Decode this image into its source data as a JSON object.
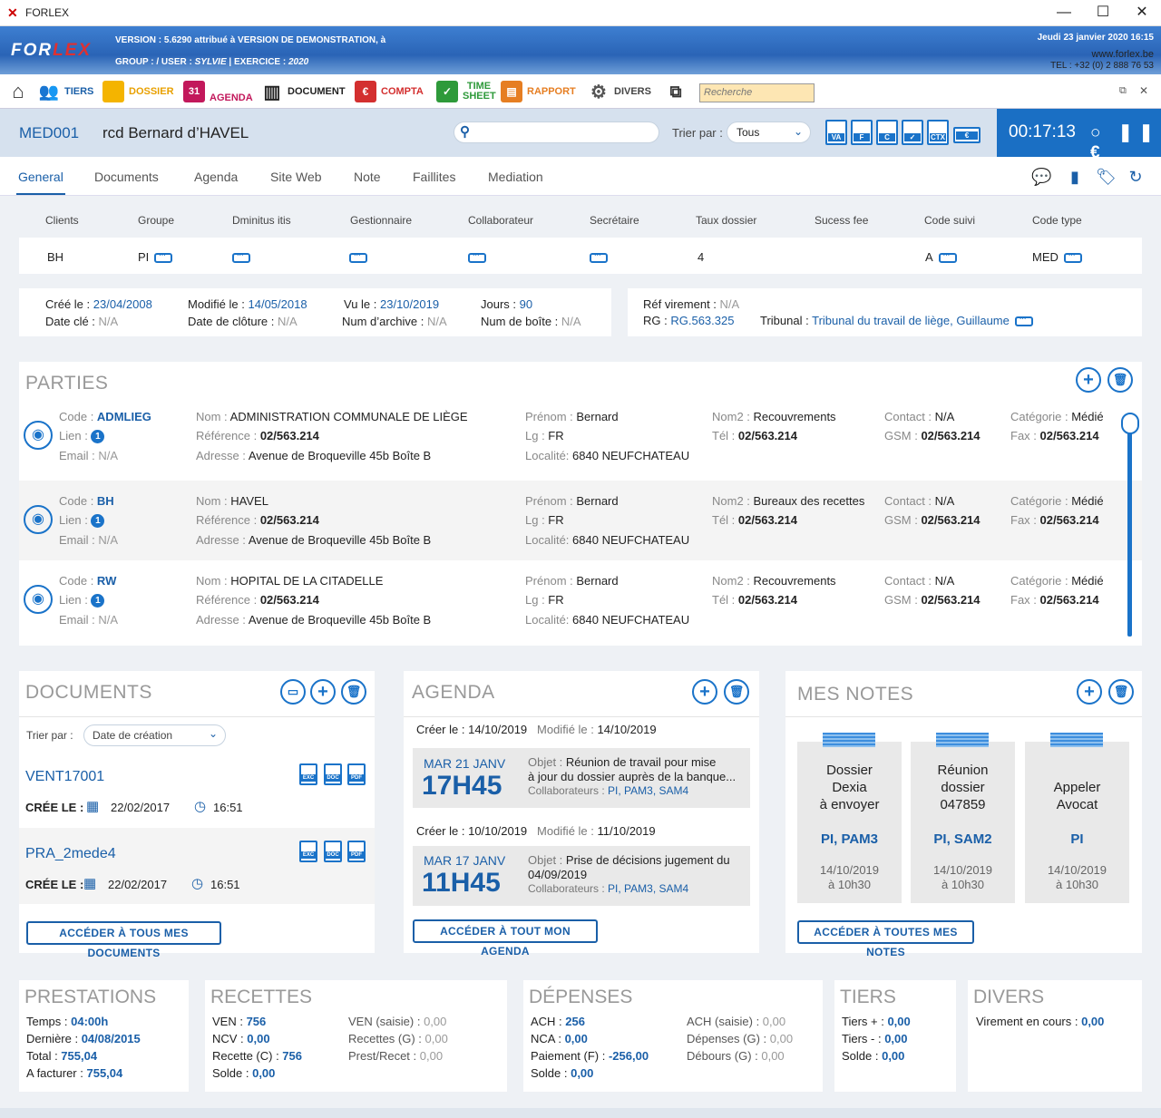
{
  "window": {
    "title": "FORLEX",
    "minimize": "—",
    "maximize": "☐",
    "close": "✕"
  },
  "banner": {
    "logo_a": "FOR",
    "logo_b": "LEX",
    "version_line": "VERSION : 5.6290 attribué à VERSION DE DEMONSTRATION,  à",
    "group_prefix": "GROUP :   /  USER : ",
    "user": "SYLVIE",
    "exercice_prefix": "  |  EXERCICE : ",
    "exercice": "2020",
    "date": "Jeudi 23 janvier 2020   16:15",
    "website": "www.forlex.be",
    "tel": "TEL : +32 (0) 2 888 76 53"
  },
  "toolbar": {
    "items": [
      {
        "label": "",
        "icon": "home-icon",
        "color": "#333"
      },
      {
        "label": "TIERS",
        "icon": "people-icon",
        "color": "#1a5fa8"
      },
      {
        "label": "DOSSIER",
        "icon": "folder-icon",
        "color": "#e8a000"
      },
      {
        "label": "AGENDA",
        "icon": "calendar-icon",
        "color": "#c2185b"
      },
      {
        "label": "DOCUMENT",
        "icon": "books-icon",
        "color": "#222"
      },
      {
        "label": "COMPTA",
        "icon": "euro-icon",
        "color": "#d32f2f"
      },
      {
        "label": "TIME SHEET",
        "icon": "timesheet-icon",
        "color": "#2e9a3a"
      },
      {
        "label": "RAPPORT",
        "icon": "printer-icon",
        "color": "#e67e22"
      },
      {
        "label": "DIVERS",
        "icon": "gears-icon",
        "color": "#444"
      },
      {
        "label": "",
        "icon": "windows-icon",
        "color": "#333"
      }
    ],
    "search_placeholder": "Recherche"
  },
  "header": {
    "code": "MED001",
    "name": "rcd Bernard d’HAVEL",
    "sort_label": "Trier par :",
    "sort_value": "Tous",
    "file_icons": [
      "VA",
      "F",
      "C",
      "✓",
      "CTX",
      "€"
    ],
    "timer": "00:17:13",
    "timer_controls": "○ ❚❚ €"
  },
  "tabs": [
    "General",
    "Documents",
    "Agenda",
    "Site Web",
    "Note",
    "Faillites",
    "Mediation"
  ],
  "fields": {
    "headers": [
      "Clients",
      "Groupe",
      "Dminitus itis",
      "Gestionnaire",
      "Collaborateur",
      "Secrétaire",
      "Taux dossier",
      "Sucess fee",
      "Code suivi",
      "Code type"
    ],
    "values": [
      "BH",
      "PI",
      "",
      "",
      "",
      "",
      "4",
      "",
      "A",
      "MED"
    ]
  },
  "dates": {
    "cree_label": "Créé le :",
    "cree": "23/04/2008",
    "cle_label": "Date clé :",
    "cle": "N/A",
    "modifie_label": "Modifié le :",
    "modifie": "14/05/2018",
    "cloture_label": "Date de clôture :",
    "cloture": "N/A",
    "vu_label": "Vu le :",
    "vu": "23/10/2019",
    "archive_label": "Num d’archive :",
    "archive": "N/A",
    "jours_label": "Jours :",
    "jours": "90",
    "boite_label": "Num de boîte :",
    "boite": "N/A",
    "virement_label": "Réf virement :",
    "virement": "N/A",
    "rg_label": "RG :",
    "rg": "RG.563.325",
    "tribunal_label": "Tribunal :",
    "tribunal": "Tribunal du travail de liège, Guillaume"
  },
  "parties": {
    "title": "PARTIES",
    "items": [
      {
        "code": "ADMLIEG",
        "lien": "1",
        "email": "N/A",
        "nom": "ADMINISTRATION COMMUNALE DE LIÈGE",
        "reference": "02/563.214",
        "adresse": "Avenue de Broqueville 45b Boîte B",
        "prenom": "Bernard",
        "lg": "FR",
        "localite": "6840 NEUFCHATEAU",
        "nom2": "Recouvrements",
        "tel": "02/563.214",
        "contact": "N/A",
        "gsm": "02/563.214",
        "categorie": "Médié",
        "fax": "02/563.214"
      },
      {
        "code": "BH",
        "lien": "1",
        "email": "N/A",
        "nom": "HAVEL",
        "reference": "02/563.214",
        "adresse": "Avenue de Broqueville 45b Boîte B",
        "prenom": "Bernard",
        "lg": "FR",
        "localite": "6840 NEUFCHATEAU",
        "nom2": "Bureaux des recettes",
        "tel": "02/563.214",
        "contact": "N/A",
        "gsm": "02/563.214",
        "categorie": "Médié",
        "fax": "02/563.214"
      },
      {
        "code": "RW",
        "lien": "1",
        "email": "N/A",
        "nom": "HOPITAL DE LA CITADELLE",
        "reference": "02/563.214",
        "adresse": "Avenue de Broqueville 45b Boîte B",
        "prenom": "Bernard",
        "lg": "FR",
        "localite": "6840 NEUFCHATEAU",
        "nom2": "Recouvrements",
        "tel": "02/563.214",
        "contact": "N/A",
        "gsm": "02/563.214",
        "categorie": "Médié",
        "fax": "02/563.214"
      }
    ],
    "labels": {
      "code": "Code : ",
      "lien": "Lien : ",
      "email": "Email : ",
      "nom": "Nom : ",
      "reference": "Référence : ",
      "adresse": "Adresse : ",
      "prenom": "Prénom : ",
      "lg": "Lg : ",
      "localite": "Localité: ",
      "nom2": "Nom2 : ",
      "tel": "Tél : ",
      "contact": "Contact : ",
      "gsm": "GSM : ",
      "categorie": "Catégorie : ",
      "fax": "Fax : "
    }
  },
  "documents": {
    "title": "DOCUMENTS",
    "sort_label": "Trier par :",
    "sort_value": "Date de création",
    "created_label": "CRÉE LE :",
    "items": [
      {
        "name": "VENT17001",
        "date": "22/02/2017",
        "time": "16:51"
      },
      {
        "name": "PRA_2mede4",
        "date": "22/02/2017",
        "time": "16:51"
      }
    ],
    "file_types": [
      "EXC",
      "DOC",
      "PDF"
    ],
    "button": "ACCÉDER À TOUS MES DOCUMENTS"
  },
  "agenda": {
    "title": "AGENDA",
    "items": [
      {
        "cree_label": "Créer le :",
        "cree": "14/10/2019",
        "modifie_label": "Modifié le :",
        "modifie": "14/10/2019",
        "day": "MAR 21 JANV",
        "hour": "17H45",
        "objet_label": "Objet : ",
        "objet": "Réunion de travail pour mise",
        "objet2": "à jour du dossier auprès de la banque...",
        "collab_label": "Collaborateurs : ",
        "collab": "PI, PAM3, SAM4"
      },
      {
        "cree_label": "Créer le :",
        "cree": "10/10/2019",
        "modifie_label": "Modifié le :",
        "modifie": "11/10/2019",
        "day": "MAR 17 JANV",
        "hour": "11H45",
        "objet_label": "Objet : ",
        "objet": "Prise de décisions jugement du",
        "objet2": "04/09/2019",
        "collab_label": "Collaborateurs :  ",
        "collab": "PI, PAM3, SAM4"
      }
    ],
    "button": "ACCÉDER À TOUT MON AGENDA"
  },
  "notes": {
    "title": "MES NOTES",
    "items": [
      {
        "l1": "Dossier",
        "l2": "Dexia",
        "l3": "à envoyer",
        "who": "PI, PAM3",
        "date": "14/10/2019",
        "time": "à 10h30"
      },
      {
        "l1": "Réunion",
        "l2": "dossier",
        "l3": "047859",
        "who": "PI, SAM2",
        "date": "14/10/2019",
        "time": "à 10h30"
      },
      {
        "l1": "Appeler",
        "l2": "Avocat",
        "l3": "",
        "who": "PI",
        "date": "14/10/2019",
        "time": "à 10h30"
      }
    ],
    "button": "ACCÉDER À TOUTES MES NOTES"
  },
  "summary": {
    "prestations": {
      "title": "PRESTATIONS",
      "rows": [
        [
          "Temps : ",
          "04:00h"
        ],
        [
          "Dernière : ",
          "04/08/2015"
        ],
        [
          "Total : ",
          "755,04"
        ],
        [
          "A facturer : ",
          "755,04"
        ]
      ]
    },
    "recettes": {
      "title": "RECETTES",
      "left": [
        [
          "VEN : ",
          "756"
        ],
        [
          "NCV : ",
          "0,00"
        ],
        [
          "Recette (C) : ",
          "756"
        ],
        [
          "Solde : ",
          "0,00"
        ]
      ],
      "right": [
        [
          "VEN (saisie) : ",
          "0,00"
        ],
        [
          "Recettes (G) : ",
          "0,00"
        ],
        [
          "Prest/Recet : ",
          "0,00"
        ]
      ]
    },
    "depenses": {
      "title": "DÉPENSES",
      "left": [
        [
          "ACH : ",
          "256"
        ],
        [
          "NCA : ",
          "0,00"
        ],
        [
          "Paiement (F) : ",
          "-256,00"
        ],
        [
          "Solde : ",
          "0,00"
        ]
      ],
      "right": [
        [
          "ACH (saisie) : ",
          "0,00"
        ],
        [
          "Dépenses (G) : ",
          "0,00"
        ],
        [
          "Débours (G) : ",
          "0,00"
        ]
      ]
    },
    "tiers": {
      "title": "TIERS",
      "rows": [
        [
          "Tiers + : ",
          "0,00"
        ],
        [
          "Tiers - : ",
          "0,00"
        ],
        [
          "Solde : ",
          "0,00"
        ]
      ]
    },
    "divers": {
      "title": "DIVERS",
      "rows": [
        [
          "Virement en cours : ",
          "0,00"
        ]
      ]
    }
  }
}
